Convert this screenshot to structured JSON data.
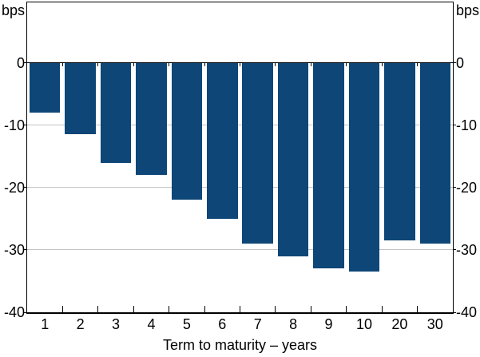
{
  "chart_data": {
    "type": "bar",
    "title": "",
    "xlabel": "Term to maturity – years",
    "unit_left": "bps",
    "unit_right": "bps",
    "categories": [
      "1",
      "2",
      "3",
      "4",
      "5",
      "6",
      "7",
      "8",
      "9",
      "10",
      "20",
      "30"
    ],
    "values": [
      -8,
      -11.5,
      -16,
      -18,
      -22,
      -25,
      -29,
      -31,
      -33,
      -33.5,
      -28.5,
      -29
    ],
    "y_ticks": [
      0,
      -10,
      -20,
      -30,
      -40
    ],
    "ylim": [
      -40,
      9.7
    ],
    "grid": true,
    "legend_position": "none",
    "colors": {
      "bar": "#0e4677",
      "gridline": "#c4c4c4",
      "axis": "#000000",
      "background": "#ffffff",
      "text": "#000000"
    }
  }
}
